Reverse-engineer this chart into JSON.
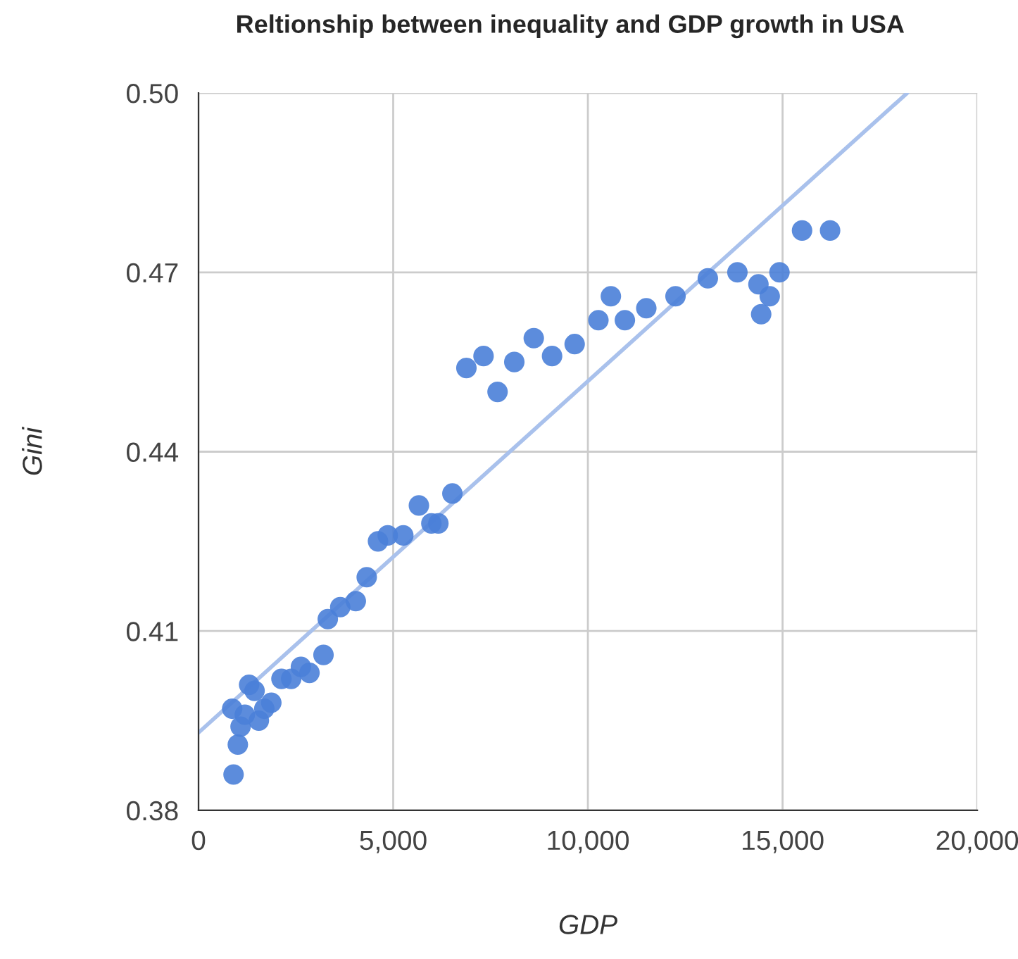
{
  "chart_data": {
    "type": "scatter",
    "title": "Reltionship between inequality and GDP growth in USA",
    "xlabel": "GDP",
    "ylabel": "Gini",
    "xlim": [
      0,
      20000
    ],
    "xticks": [
      0,
      {
        "value": 5000,
        "label": "5,000"
      },
      {
        "value": 10000,
        "label": "10,000"
      },
      {
        "value": 15000,
        "label": "15,000"
      },
      {
        "value": 20000,
        "label": "20,000"
      }
    ],
    "ylim": [
      0.38,
      0.5
    ],
    "yticks": [
      0.38,
      0.41,
      0.44,
      0.47,
      {
        "value": 0.5,
        "label": "0.50"
      }
    ],
    "grid": true,
    "series": [
      {
        "marker": "circle",
        "color": "#4a7fd8",
        "x": [
          900,
          1010,
          865,
          1080,
          1190,
          1300,
          1440,
          1550,
          1690,
          1870,
          2130,
          2380,
          2630,
          2850,
          3210,
          3320,
          3640,
          4040,
          4320,
          4610,
          4860,
          5260,
          5660,
          5980,
          6160,
          6520,
          6880,
          7320,
          7680,
          8110,
          8610,
          9080,
          9660,
          10270,
          10590,
          10950,
          11500,
          12250,
          13080,
          13840,
          14380,
          14450,
          14670,
          14920,
          15500,
          16220
        ],
        "values": [
          0.386,
          0.391,
          0.397,
          0.394,
          0.396,
          0.401,
          0.4,
          0.395,
          0.397,
          0.398,
          0.402,
          0.402,
          0.404,
          0.403,
          0.406,
          0.412,
          0.414,
          0.415,
          0.419,
          0.425,
          0.426,
          0.426,
          0.431,
          0.428,
          0.428,
          0.433,
          0.454,
          0.456,
          0.45,
          0.455,
          0.459,
          0.456,
          0.458,
          0.462,
          0.466,
          0.462,
          0.464,
          0.466,
          0.469,
          0.47,
          0.468,
          0.463,
          0.466,
          0.47,
          0.477,
          0.477
        ]
      },
      {
        "type": "line",
        "color": "#a9c1ec",
        "x": [
          0,
          18200
        ],
        "values": [
          0.393,
          0.5
        ]
      }
    ]
  }
}
